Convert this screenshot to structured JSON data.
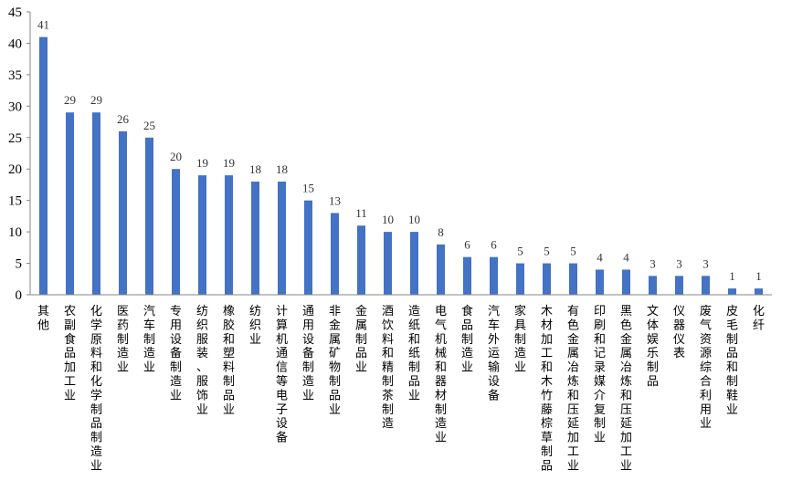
{
  "chart_data": {
    "type": "bar",
    "title": "",
    "xlabel": "",
    "ylabel": "",
    "ylim": [
      0,
      45
    ],
    "yticks": [
      0,
      5,
      10,
      15,
      20,
      25,
      30,
      35,
      40,
      45
    ],
    "grid": false,
    "legend": "none",
    "bar_color": "#4472C4",
    "categories": [
      "其他",
      "农副食品加工业",
      "化学原料和化学制品制造业",
      "医药制造业",
      "汽车制造业",
      "专用设备制造业",
      "纺织服装、服饰业",
      "橡胶和塑料制品业",
      "纺织业",
      "计算机通信等电子设备",
      "通用设备制造业",
      "非金属矿物制品业",
      "金属制品业",
      "酒饮料和精制茶制造",
      "造纸和纸制品业",
      "电气机械和器材制造业",
      "食品制造业",
      "汽车外运输设备",
      "家具制造业",
      "木材加工和木竹藤棕草制品",
      "有色金属冶炼和压延加工业",
      "印刷和记录媒介复制业",
      "黑色金属冶炼和压延加工业",
      "文体娱乐制品",
      "仪器仪表",
      "废气资源综合利用业",
      "皮毛制品和制鞋业",
      "化纤"
    ],
    "values": [
      41,
      29,
      29,
      26,
      25,
      20,
      19,
      19,
      18,
      18,
      15,
      13,
      11,
      10,
      10,
      8,
      6,
      6,
      5,
      5,
      5,
      4,
      4,
      3,
      3,
      3,
      1,
      1
    ]
  }
}
